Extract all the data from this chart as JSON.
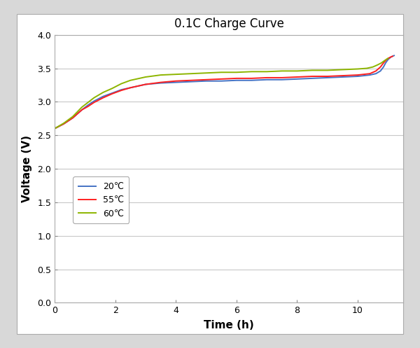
{
  "title": "0.1C Charge Curve",
  "xlabel": "Time （h）",
  "ylabel": "Voltage（V）",
  "xlabel_plain": "Time (h)",
  "ylabel_plain": "Voltage (V)",
  "xlim": [
    0,
    11.5
  ],
  "ylim": [
    0.0,
    4.0
  ],
  "xticks": [
    0,
    2,
    4,
    6,
    8,
    10
  ],
  "yticks": [
    0.0,
    0.5,
    1.0,
    1.5,
    2.0,
    2.5,
    3.0,
    3.5,
    4.0
  ],
  "legend": [
    "20℃",
    "55℃",
    "60℃"
  ],
  "colors": [
    "#4472C4",
    "#FF2020",
    "#8DB500"
  ],
  "outer_bg": "#D8D8D8",
  "plot_bg": "#FFFFFF",
  "grid_color": "#C8C8C8",
  "series_20C": {
    "x": [
      0,
      0.3,
      0.6,
      0.9,
      1.1,
      1.3,
      1.6,
      1.9,
      2.2,
      2.5,
      2.8,
      3.0,
      3.5,
      4.0,
      4.5,
      5.0,
      5.5,
      6.0,
      6.5,
      7.0,
      7.5,
      8.0,
      8.5,
      9.0,
      9.5,
      10.0,
      10.4,
      10.6,
      10.75,
      10.85,
      10.92,
      11.0,
      11.1,
      11.2
    ],
    "y": [
      2.6,
      2.67,
      2.76,
      2.88,
      2.95,
      3.01,
      3.08,
      3.13,
      3.18,
      3.21,
      3.24,
      3.26,
      3.28,
      3.29,
      3.3,
      3.31,
      3.31,
      3.32,
      3.32,
      3.33,
      3.33,
      3.34,
      3.35,
      3.36,
      3.37,
      3.38,
      3.4,
      3.42,
      3.46,
      3.52,
      3.58,
      3.63,
      3.67,
      3.69
    ]
  },
  "series_55C": {
    "x": [
      0,
      0.3,
      0.6,
      0.9,
      1.1,
      1.3,
      1.6,
      1.9,
      2.2,
      2.5,
      2.8,
      3.0,
      3.5,
      4.0,
      4.5,
      5.0,
      5.5,
      6.0,
      6.5,
      7.0,
      7.5,
      8.0,
      8.5,
      9.0,
      9.5,
      10.0,
      10.4,
      10.6,
      10.75,
      10.85,
      10.95,
      11.05,
      11.15
    ],
    "y": [
      2.6,
      2.67,
      2.76,
      2.88,
      2.93,
      2.99,
      3.06,
      3.12,
      3.17,
      3.21,
      3.24,
      3.26,
      3.29,
      3.31,
      3.32,
      3.33,
      3.34,
      3.35,
      3.35,
      3.36,
      3.36,
      3.37,
      3.38,
      3.38,
      3.39,
      3.4,
      3.42,
      3.46,
      3.52,
      3.58,
      3.63,
      3.66,
      3.68
    ]
  },
  "series_60C": {
    "x": [
      0,
      0.3,
      0.6,
      0.9,
      1.1,
      1.3,
      1.6,
      1.9,
      2.2,
      2.5,
      2.8,
      3.0,
      3.5,
      4.0,
      4.5,
      5.0,
      5.5,
      6.0,
      6.5,
      7.0,
      7.5,
      8.0,
      8.5,
      9.0,
      9.5,
      10.0,
      10.3,
      10.5,
      10.65,
      10.78,
      10.9,
      11.0
    ],
    "y": [
      2.6,
      2.68,
      2.78,
      2.92,
      2.99,
      3.06,
      3.14,
      3.2,
      3.27,
      3.32,
      3.35,
      3.37,
      3.4,
      3.41,
      3.42,
      3.43,
      3.44,
      3.44,
      3.45,
      3.45,
      3.46,
      3.46,
      3.47,
      3.47,
      3.48,
      3.49,
      3.5,
      3.52,
      3.55,
      3.58,
      3.62,
      3.65
    ]
  }
}
